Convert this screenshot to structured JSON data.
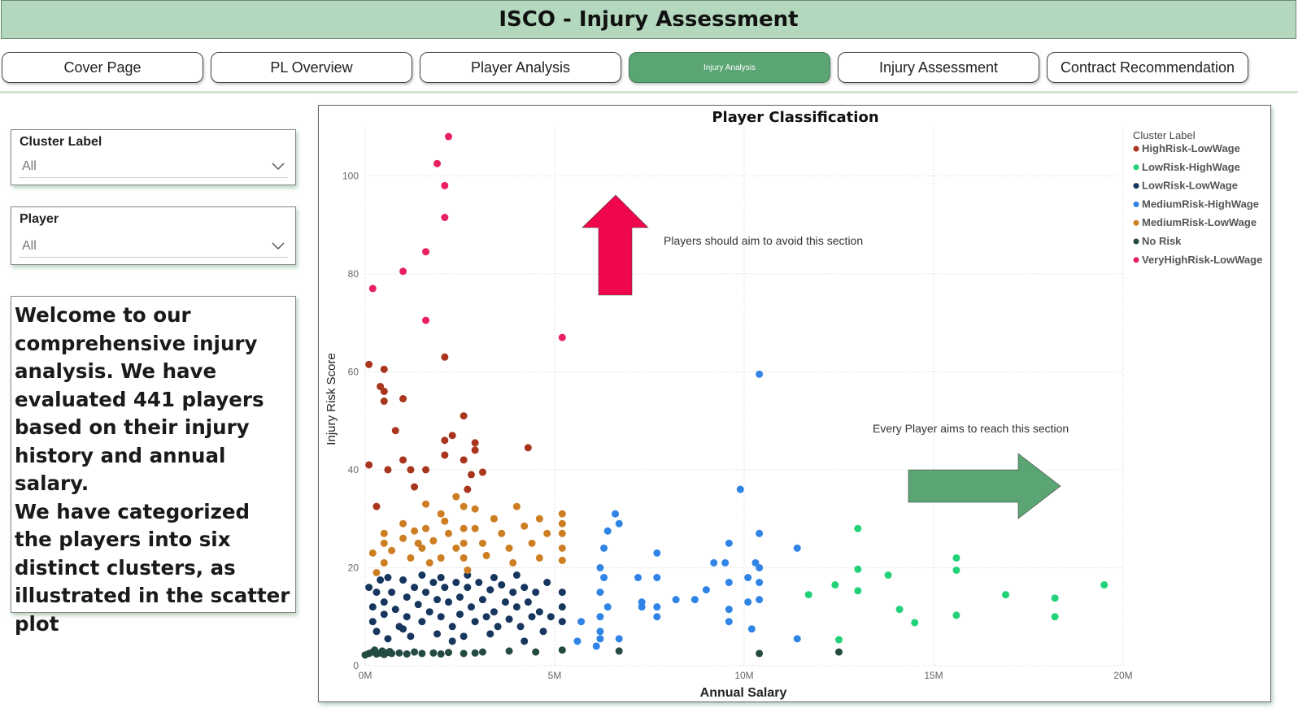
{
  "header": {
    "title": "ISCO - Injury Assessment"
  },
  "nav": {
    "tabs": [
      {
        "label": "Cover Page",
        "active": false
      },
      {
        "label": "PL Overview",
        "active": false
      },
      {
        "label": "Player Analysis",
        "active": false
      },
      {
        "label": "Injury Analysis",
        "active": true
      },
      {
        "label": "Injury Assessment",
        "active": false
      },
      {
        "label": "Contract Recommendation",
        "active": false
      }
    ]
  },
  "filters": {
    "cluster": {
      "title": "Cluster Label",
      "value": "All",
      "icon": "chevron-down-icon"
    },
    "player": {
      "title": "Player",
      "value": "All",
      "icon": "chevron-down-icon"
    }
  },
  "intro": {
    "text": "Welcome to our comprehensive injury analysis. We have evaluated 441 players based on their injury history and annual salary.\nWe have categorized the players into six distinct clusters, as illustrated in the scatter plot"
  },
  "colors": {
    "header_bg": "#b3d8bd",
    "active_tab": "#5aa573",
    "up_arrow": "#f0064a",
    "right_arrow": "#5aa573"
  },
  "annotations": {
    "avoid": "Players should aim to avoid this  section",
    "reach": "Every Player aims to reach this section"
  },
  "chart_data": {
    "type": "scatter",
    "title": "Player Classification",
    "xlabel": "Annual Salary",
    "ylabel": "Injury Risk Score",
    "xlim": [
      0,
      20
    ],
    "ylim": [
      0,
      110
    ],
    "x_unit": "M",
    "x_ticks": [
      "0M",
      "5M",
      "10M",
      "15M",
      "20M"
    ],
    "y_ticks": [
      "0",
      "20",
      "40",
      "60",
      "80",
      "100"
    ],
    "grid": true,
    "legend_title": "Cluster Label",
    "legend_position": "top-right",
    "series": [
      {
        "name": "HighRisk-LowWage",
        "color": "#a8351c",
        "points": [
          [
            0.1,
            61.5
          ],
          [
            0.4,
            57
          ],
          [
            0.5,
            60.5
          ],
          [
            0.5,
            56
          ],
          [
            0.5,
            54
          ],
          [
            0.8,
            48
          ],
          [
            1.0,
            42
          ],
          [
            1.0,
            54.5
          ],
          [
            1.3,
            36.5
          ],
          [
            1.6,
            40
          ],
          [
            2.1,
            63
          ],
          [
            2.1,
            46
          ],
          [
            2.1,
            43
          ],
          [
            2.3,
            47
          ],
          [
            2.6,
            51
          ],
          [
            2.6,
            42
          ],
          [
            2.7,
            36
          ],
          [
            2.8,
            39
          ],
          [
            2.9,
            45.5
          ],
          [
            2.9,
            44
          ],
          [
            3.1,
            39.5
          ],
          [
            4.3,
            44.5
          ],
          [
            1.2,
            40
          ],
          [
            0.6,
            40
          ],
          [
            0.3,
            32.5
          ],
          [
            0.1,
            41
          ]
        ]
      },
      {
        "name": "LowRisk-HighWage",
        "color": "#21d279",
        "points": [
          [
            11.7,
            14.5
          ],
          [
            12.4,
            16.5
          ],
          [
            12.5,
            5.3
          ],
          [
            13.0,
            28
          ],
          [
            13.0,
            19.7
          ],
          [
            13.0,
            15.3
          ],
          [
            13.8,
            18.5
          ],
          [
            14.1,
            11.5
          ],
          [
            14.5,
            8.8
          ],
          [
            15.6,
            22
          ],
          [
            15.6,
            19.5
          ],
          [
            15.6,
            10.3
          ],
          [
            16.9,
            14.5
          ],
          [
            18.2,
            13.8
          ],
          [
            18.2,
            10
          ],
          [
            19.5,
            16.5
          ]
        ]
      },
      {
        "name": "LowRisk-LowWage",
        "color": "#16365e",
        "points": [
          [
            0.1,
            16
          ],
          [
            0.2,
            12
          ],
          [
            0.2,
            9
          ],
          [
            0.3,
            15
          ],
          [
            0.3,
            7
          ],
          [
            0.4,
            17.5
          ],
          [
            0.5,
            13
          ],
          [
            0.5,
            10.5
          ],
          [
            0.6,
            5.5
          ],
          [
            0.7,
            15
          ],
          [
            0.8,
            11.5
          ],
          [
            0.9,
            8
          ],
          [
            1.0,
            17.5
          ],
          [
            1.1,
            14
          ],
          [
            1.1,
            10
          ],
          [
            1.2,
            6
          ],
          [
            1.3,
            16
          ],
          [
            1.4,
            12.5
          ],
          [
            1.5,
            9
          ],
          [
            1.6,
            15
          ],
          [
            1.7,
            11
          ],
          [
            1.8,
            17
          ],
          [
            1.9,
            13.5
          ],
          [
            1.9,
            6.5
          ],
          [
            2.0,
            10
          ],
          [
            2.1,
            16
          ],
          [
            2.2,
            13
          ],
          [
            2.3,
            8
          ],
          [
            2.4,
            17
          ],
          [
            2.5,
            14
          ],
          [
            2.5,
            10.5
          ],
          [
            2.6,
            6
          ],
          [
            2.7,
            16
          ],
          [
            2.8,
            12
          ],
          [
            2.9,
            9
          ],
          [
            3.0,
            17
          ],
          [
            3.1,
            13.5
          ],
          [
            3.2,
            10
          ],
          [
            3.3,
            15.5
          ],
          [
            3.4,
            11
          ],
          [
            3.5,
            8
          ],
          [
            3.6,
            16.5
          ],
          [
            3.7,
            13
          ],
          [
            3.8,
            9.5
          ],
          [
            3.9,
            15
          ],
          [
            4.0,
            12
          ],
          [
            4.1,
            8
          ],
          [
            4.2,
            16
          ],
          [
            4.3,
            13
          ],
          [
            4.4,
            10
          ],
          [
            4.5,
            15
          ],
          [
            4.6,
            11
          ],
          [
            4.7,
            7
          ],
          [
            4.8,
            17
          ],
          [
            5.2,
            15
          ],
          [
            5.2,
            12
          ],
          [
            5.2,
            9
          ],
          [
            0.6,
            18
          ],
          [
            1.5,
            18.5
          ],
          [
            2.0,
            18
          ],
          [
            2.7,
            18.5
          ],
          [
            3.4,
            18
          ],
          [
            4.0,
            18.5
          ],
          [
            1.0,
            7.5
          ],
          [
            2.3,
            5
          ],
          [
            3.3,
            6.5
          ],
          [
            4.2,
            5
          ],
          [
            4.9,
            10
          ]
        ]
      },
      {
        "name": "MediumRisk-HighWage",
        "color": "#2f84e6",
        "points": [
          [
            10.4,
            59.5
          ],
          [
            9.9,
            36
          ],
          [
            6.4,
            27.5
          ],
          [
            6.6,
            31
          ],
          [
            6.7,
            29
          ],
          [
            6.3,
            24
          ],
          [
            6.2,
            20
          ],
          [
            6.3,
            18
          ],
          [
            6.2,
            15
          ],
          [
            6.4,
            12
          ],
          [
            6.2,
            10
          ],
          [
            6.2,
            7
          ],
          [
            5.7,
            9
          ],
          [
            6.1,
            4
          ],
          [
            6.7,
            5.5
          ],
          [
            7.2,
            18
          ],
          [
            7.3,
            13
          ],
          [
            7.3,
            12
          ],
          [
            7.7,
            23
          ],
          [
            7.7,
            18
          ],
          [
            7.7,
            12
          ],
          [
            7.7,
            10
          ],
          [
            8.2,
            13.5
          ],
          [
            8.7,
            13.5
          ],
          [
            9.0,
            15.5
          ],
          [
            9.2,
            21
          ],
          [
            9.5,
            21
          ],
          [
            9.6,
            25
          ],
          [
            9.6,
            17
          ],
          [
            9.6,
            11.5
          ],
          [
            9.6,
            9
          ],
          [
            10.1,
            18
          ],
          [
            10.1,
            13
          ],
          [
            10.2,
            7.5
          ],
          [
            10.3,
            21
          ],
          [
            10.4,
            27
          ],
          [
            10.4,
            20
          ],
          [
            10.4,
            17
          ],
          [
            10.4,
            13.5
          ],
          [
            11.4,
            24
          ],
          [
            11.4,
            5.5
          ],
          [
            6.2,
            5.5
          ],
          [
            5.6,
            5
          ]
        ]
      },
      {
        "name": "MediumRisk-LowWage",
        "color": "#cd7e22",
        "points": [
          [
            0.2,
            23
          ],
          [
            0.3,
            19
          ],
          [
            0.5,
            21
          ],
          [
            0.5,
            25
          ],
          [
            0.5,
            27
          ],
          [
            0.7,
            23.5
          ],
          [
            1.0,
            26
          ],
          [
            1.0,
            29
          ],
          [
            1.2,
            22
          ],
          [
            1.3,
            27.5
          ],
          [
            1.4,
            25
          ],
          [
            1.6,
            33
          ],
          [
            1.6,
            28
          ],
          [
            1.7,
            21
          ],
          [
            1.8,
            25.5
          ],
          [
            2.0,
            31
          ],
          [
            2.0,
            22
          ],
          [
            2.1,
            29.5
          ],
          [
            2.2,
            27
          ],
          [
            2.4,
            34.5
          ],
          [
            2.4,
            24
          ],
          [
            2.6,
            32.5
          ],
          [
            2.6,
            28
          ],
          [
            2.6,
            25
          ],
          [
            2.6,
            22
          ],
          [
            2.7,
            19.5
          ],
          [
            2.9,
            32
          ],
          [
            2.9,
            28
          ],
          [
            3.1,
            25
          ],
          [
            3.2,
            22.5
          ],
          [
            3.4,
            30
          ],
          [
            3.6,
            27
          ],
          [
            3.8,
            24
          ],
          [
            3.9,
            21
          ],
          [
            4.0,
            32.5
          ],
          [
            4.2,
            28.5
          ],
          [
            4.4,
            25
          ],
          [
            4.6,
            22
          ],
          [
            4.6,
            30
          ],
          [
            4.8,
            27
          ],
          [
            5.2,
            31
          ],
          [
            5.2,
            29
          ],
          [
            5.2,
            27
          ],
          [
            5.2,
            24
          ],
          [
            5.2,
            21.5
          ],
          [
            1.5,
            24
          ]
        ]
      },
      {
        "name": "No Risk",
        "color": "#244b42",
        "points": [
          [
            0.0,
            2.2
          ],
          [
            0.1,
            2.5
          ],
          [
            0.2,
            2.8
          ],
          [
            0.3,
            2.4
          ],
          [
            0.4,
            2.6
          ],
          [
            0.5,
            2.3
          ],
          [
            0.6,
            2.7
          ],
          [
            0.7,
            2.5
          ],
          [
            0.9,
            2.6
          ],
          [
            1.1,
            2.4
          ],
          [
            1.3,
            2.8
          ],
          [
            1.5,
            2.5
          ],
          [
            1.8,
            2.6
          ],
          [
            2.0,
            2.4
          ],
          [
            2.2,
            2.7
          ],
          [
            2.6,
            2.5
          ],
          [
            2.9,
            2.6
          ],
          [
            3.1,
            2.8
          ],
          [
            3.8,
            3.0
          ],
          [
            4.5,
            2.8
          ],
          [
            5.2,
            3.2
          ],
          [
            6.7,
            3
          ],
          [
            10.4,
            2.5
          ],
          [
            12.5,
            2.8
          ],
          [
            0.25,
            3.2
          ],
          [
            0.45,
            3.0
          ],
          [
            0.65,
            2.9
          ]
        ]
      },
      {
        "name": "VeryHighRisk-LowWage",
        "color": "#e9205f",
        "points": [
          [
            2.2,
            108
          ],
          [
            1.9,
            102.5
          ],
          [
            2.1,
            98
          ],
          [
            2.1,
            91.5
          ],
          [
            1.6,
            84.5
          ],
          [
            1.0,
            80.5
          ],
          [
            0.2,
            77
          ],
          [
            1.6,
            70.5
          ],
          [
            5.2,
            67
          ]
        ]
      }
    ]
  }
}
